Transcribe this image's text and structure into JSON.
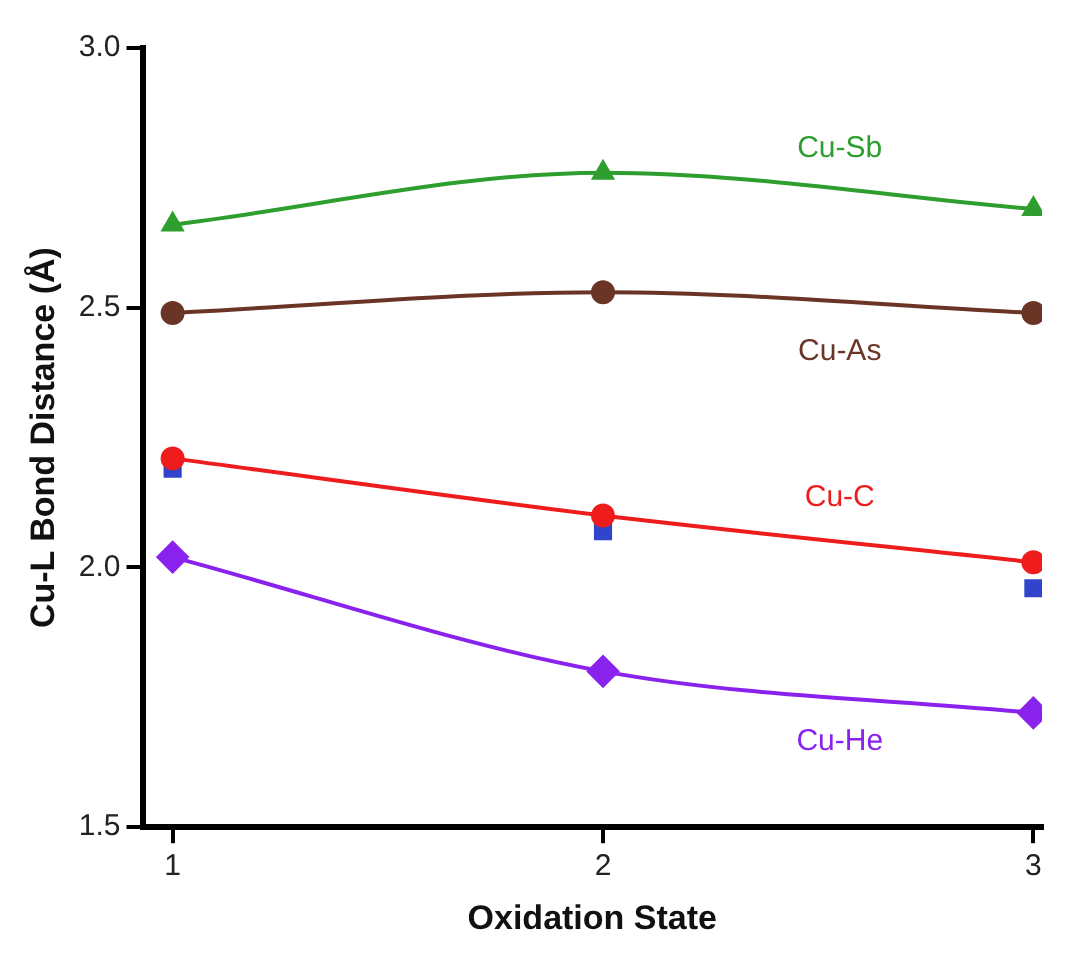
{
  "chart_data": {
    "type": "line",
    "xlabel": "Oxidation State",
    "ylabel": "Cu-L Bond Distance (Å)",
    "x": [
      1,
      2,
      3
    ],
    "xlim": [
      0.93,
      3.02
    ],
    "xticks": [
      1,
      2,
      3
    ],
    "ylim": [
      1.5,
      3.0
    ],
    "yticks": [
      {
        "value": 1.5,
        "label": "1.5"
      },
      {
        "value": 2,
        "label": "2.0"
      },
      {
        "value": 2.5,
        "label": "2.5"
      },
      {
        "value": 3,
        "label": "3.0"
      }
    ],
    "grid": false,
    "legend": false,
    "series": [
      {
        "name": "Cu-Sb",
        "color": "#2e9e2e",
        "marker": "triangle",
        "values": [
          2.66,
          2.76,
          2.69
        ]
      },
      {
        "name": "Cu-As",
        "color": "#6b3526",
        "marker": "circle",
        "values": [
          2.49,
          2.53,
          2.49
        ]
      },
      {
        "name": "Cu-C",
        "color": "#ee1c1c",
        "marker": "circle",
        "values": [
          2.21,
          2.1,
          2.01
        ]
      },
      {
        "type": "scatter",
        "color": "#3344cc",
        "marker": "square",
        "values": [
          2.19,
          2.07,
          1.96
        ]
      },
      {
        "name": "Cu-He",
        "color": "#8a22ee",
        "marker": "diamond",
        "values": [
          2.02,
          1.8,
          1.72
        ]
      }
    ]
  }
}
